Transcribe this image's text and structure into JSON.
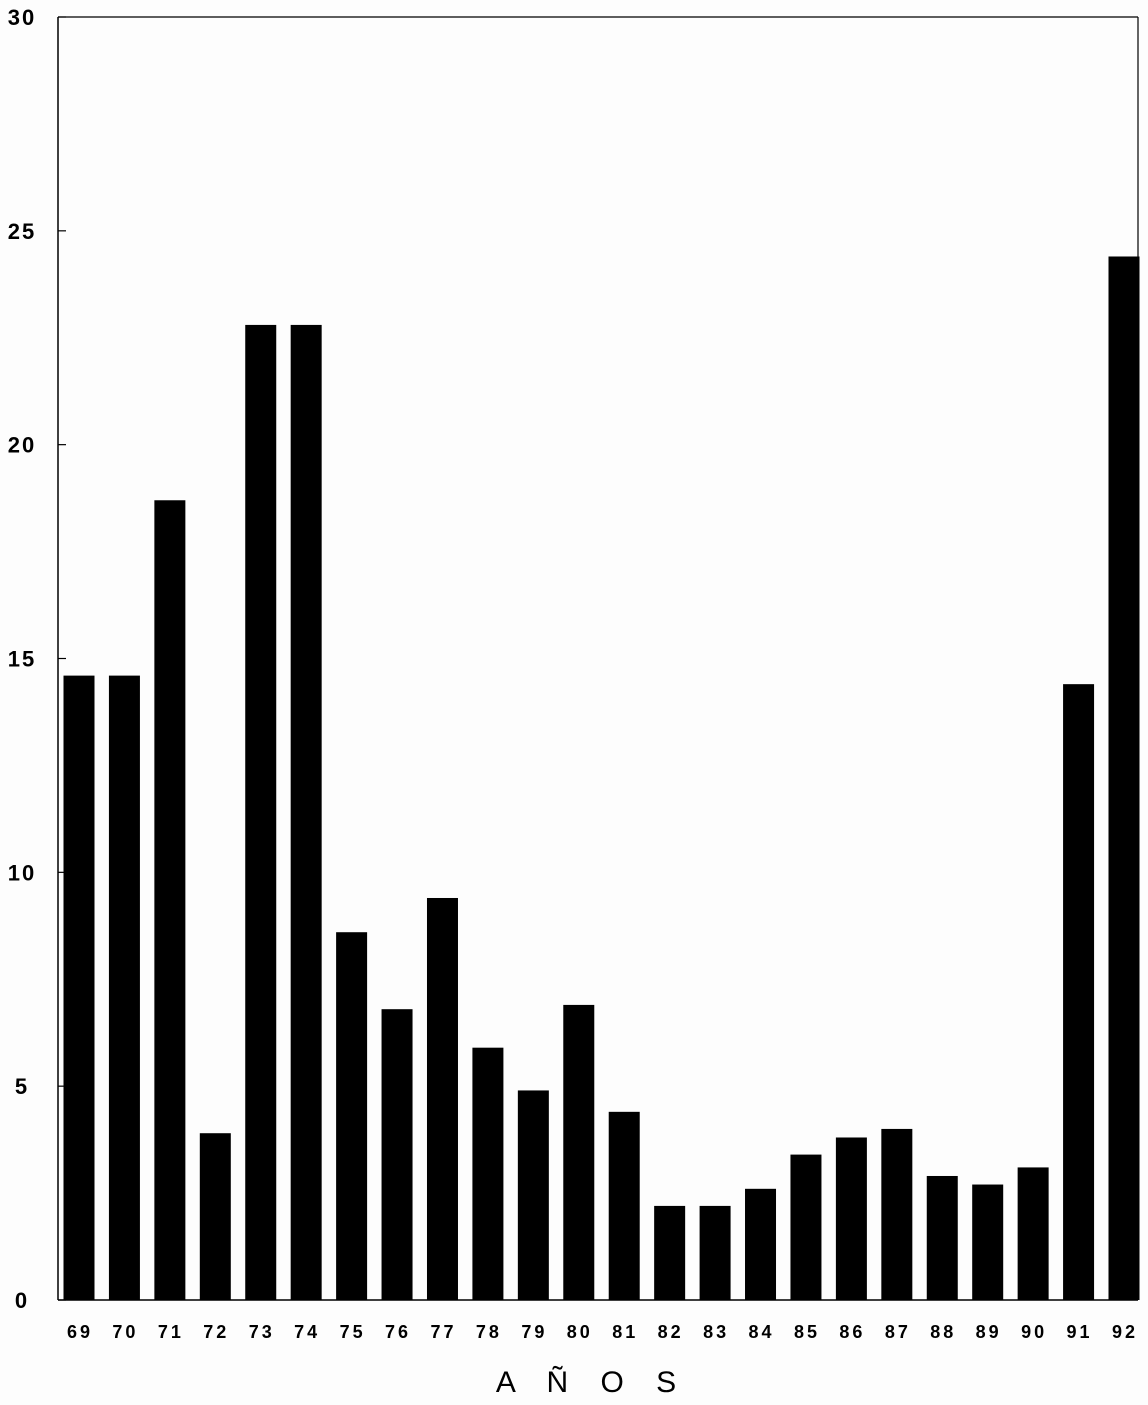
{
  "chart_data": {
    "type": "bar",
    "title": "",
    "xlabel": "A Ñ O S",
    "ylabel": "",
    "ylim": [
      0,
      30
    ],
    "yticks": [
      "0",
      "5",
      "10",
      "15",
      "20",
      "25",
      "30"
    ],
    "categories": [
      "69",
      "70",
      "71",
      "72",
      "73",
      "74",
      "75",
      "76",
      "77",
      "78",
      "79",
      "80",
      "81",
      "82",
      "83",
      "84",
      "85",
      "86",
      "87",
      "88",
      "89",
      "90",
      "91",
      "92"
    ],
    "values": [
      14.6,
      14.6,
      18.7,
      3.9,
      22.8,
      22.8,
      8.6,
      6.8,
      9.4,
      5.9,
      4.9,
      6.9,
      4.4,
      2.2,
      2.2,
      2.6,
      3.4,
      3.8,
      4.0,
      2.9,
      2.7,
      3.1,
      14.4,
      24.4
    ],
    "bar_color": "#000000",
    "grid": false,
    "legend": "none"
  }
}
